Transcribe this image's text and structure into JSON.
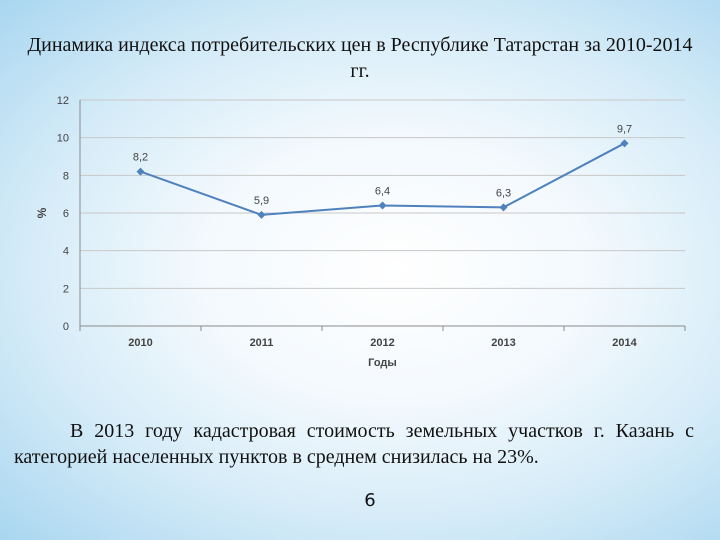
{
  "title": "Динамика индекса потребительских цен в Республике Татарстан за 2010-2014 гг.",
  "chart_data": {
    "type": "line",
    "categories": [
      "2010",
      "2011",
      "2012",
      "2013",
      "2014"
    ],
    "values": [
      8.2,
      5.9,
      6.4,
      6.3,
      9.7
    ],
    "value_labels": [
      "8,2",
      "5,9",
      "6,4",
      "6,3",
      "9,7"
    ],
    "y_ticks": [
      "0",
      "2",
      "4",
      "6",
      "8",
      "10",
      "12"
    ],
    "ylim": [
      0,
      12
    ],
    "ylabel": "%",
    "xlabel": "Годы",
    "grid": true,
    "line_color": "#4f81bd"
  },
  "paragraph": "В 2013 году кадастровая стоимость земельных участков г. Казань с категорией населенных пунктов в среднем снизилась на 23%.",
  "page_number": "6"
}
